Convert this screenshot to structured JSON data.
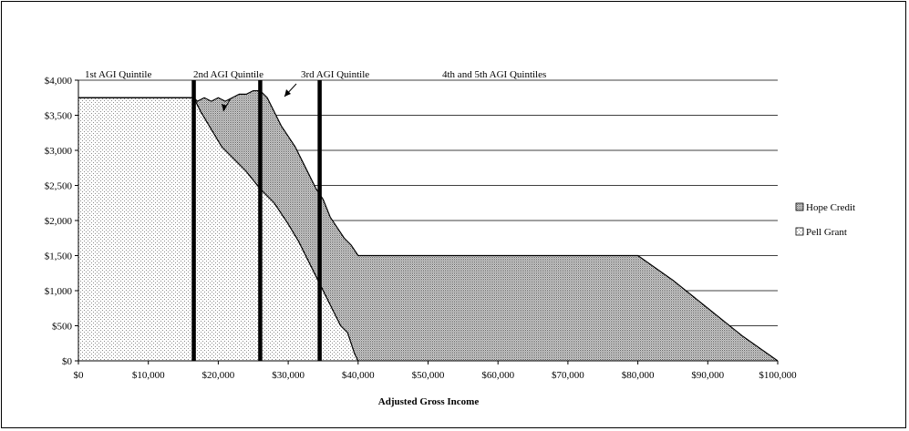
{
  "chart_data": {
    "type": "area",
    "xlabel": "Adjusted Gross Income",
    "ylabel": "",
    "xlim": [
      0,
      100000
    ],
    "ylim": [
      0,
      4000
    ],
    "x_ticks": [
      "$0",
      "$10,000",
      "$20,000",
      "$30,000",
      "$40,000",
      "$50,000",
      "$60,000",
      "$70,000",
      "$80,000",
      "$90,000",
      "$100,000"
    ],
    "y_ticks": [
      "$0",
      "$500",
      "$1,000",
      "$1,500",
      "$2,000",
      "$2,500",
      "$3,000",
      "$3,500",
      "$4,000"
    ],
    "grid": "horizontal",
    "legend_position": "right",
    "series": [
      {
        "name": "Pell Grant",
        "x": [
          0,
          16500,
          17500,
          19000,
          20500,
          22000,
          24000,
          26000,
          28000,
          30000,
          31500,
          33000,
          34500,
          35500,
          36500,
          37500,
          38500,
          39500,
          40000
        ],
        "values": [
          3750,
          3750,
          3550,
          3300,
          3050,
          2900,
          2700,
          2450,
          2250,
          1950,
          1700,
          1400,
          1100,
          900,
          700,
          500,
          400,
          100,
          0
        ]
      },
      {
        "name": "Hope Credit",
        "x": [
          0,
          16500,
          17000,
          18000,
          19000,
          20000,
          21000,
          22000,
          23000,
          24000,
          25000,
          26000,
          27000,
          28000,
          29000,
          30000,
          31000,
          32000,
          33000,
          34000,
          35000,
          36000,
          37000,
          38000,
          39000,
          40000,
          80000,
          85000,
          90000,
          95000,
          100000
        ],
        "values": [
          3750,
          3750,
          3700,
          3750,
          3700,
          3750,
          3700,
          3750,
          3800,
          3800,
          3850,
          3850,
          3750,
          3550,
          3350,
          3200,
          3050,
          2850,
          2650,
          2450,
          2300,
          2050,
          1900,
          1750,
          1650,
          1500,
          1500,
          1150,
          750,
          350,
          0
        ]
      }
    ],
    "markers": [
      16500,
      26000,
      34500
    ],
    "annotations": [
      "1st AGI Quintile",
      "2nd AGI Quintile",
      "3rd AGI Quintile",
      "4th and 5th  AGI  Quintiles"
    ]
  }
}
